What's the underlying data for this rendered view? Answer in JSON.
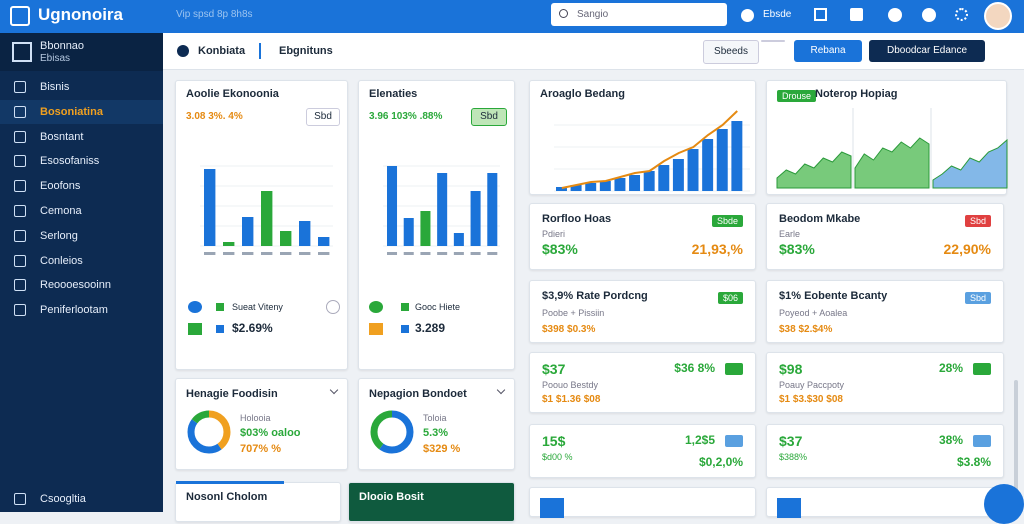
{
  "topbar": {
    "logo": "Ugnonoira",
    "tagline": "Vip spsd 8p 8h8s",
    "search": "Sangio",
    "user_link": "Ebsde"
  },
  "sidebar": {
    "brand": "Bbonnao",
    "brand_sub": "Ebisas",
    "items": [
      "Bisnis",
      "Bosoniatina",
      "Bosntant",
      "Esosofaniss",
      "Eoofons",
      "Cemona",
      "Serlong",
      "Conleios",
      "Reoooesooinn",
      "Peniferlootam"
    ],
    "footer": "Csoogltia"
  },
  "toolbar": {
    "title": "Konbiata",
    "tab": "Ebgnituns",
    "buttons": [
      "Sbeeds",
      "Rebana",
      "Dboodcar Edance"
    ]
  },
  "charts": {
    "a": {
      "title": "Aoolie Ekonoonia",
      "stats": "3.08 3%. 4%",
      "button": "Sbd",
      "bars": [
        77,
        4,
        29,
        55,
        15,
        25,
        9
      ],
      "bar_colors": [
        "#1a73d9",
        "#2aa83a",
        "#1a73d9",
        "#2aa83a",
        "#2aa83a",
        "#1a73d9",
        "#1a73d9"
      ],
      "legend": "Sueat Viteny",
      "value": "$2.69%"
    },
    "b": {
      "title": "Elenaties",
      "stats": "3.96 103% .88%",
      "button": "Sbd",
      "bars": [
        80,
        28,
        35,
        73,
        13,
        55,
        73
      ],
      "bar_colors": [
        "#1a73d9",
        "#1a73d9",
        "#2aa83a",
        "#1a73d9",
        "#1a73d9",
        "#1a73d9",
        "#1a73d9"
      ],
      "legend": "Gooc Hiete",
      "value": "3.289"
    },
    "c": {
      "title": "Aroaglo Bedang",
      "bars": [
        4,
        6,
        8,
        10,
        13,
        16,
        20,
        26,
        32,
        42,
        52,
        62,
        70
      ],
      "line": [
        3,
        6,
        9,
        10,
        14,
        18,
        20,
        30,
        38,
        44,
        56,
        66,
        80
      ]
    },
    "d": {
      "title": "Noterop Hopiag",
      "badge": "Drouse",
      "panels": [
        [
          10,
          18,
          14,
          24,
          20,
          30,
          26,
          36,
          32
        ],
        [
          20,
          34,
          28,
          40,
          36,
          46,
          40,
          50,
          44
        ],
        [
          8,
          14,
          22,
          18,
          30,
          26,
          36,
          40,
          48
        ]
      ]
    }
  },
  "stats": [
    {
      "title": "Rorfloo Hoas",
      "sub": "Pdieri",
      "left": "$83%",
      "right": "21,93,%",
      "badge": "Sbde"
    },
    {
      "title": "Beodom Mkabe",
      "sub": "Earle",
      "left": "$83%",
      "right": "22,90%",
      "badge": "Sbd"
    }
  ],
  "rows": [
    [
      {
        "title": "$3,9% Rate Pordcng",
        "sub": "Poobe + Pissiin",
        "foot": "$398 $0.3%",
        "badge": "$06"
      },
      {
        "title": "$1% Eobente Bcanty",
        "sub": "Poyeod + Aoalea",
        "foot": "$38 $2.$4%",
        "badge": "Sbd"
      }
    ],
    [
      {
        "title": "$37",
        "sub": "Poouo Bestdy",
        "right": "$36 8%",
        "foot": "$1 $1.36 $08"
      },
      {
        "title": "$98",
        "sub": "Poauy Paccpoty",
        "right": "28%",
        "foot": "$1 $3.$30 $08"
      }
    ],
    [
      {
        "title": "15$",
        "sub": "$d00 %",
        "right": "1,2$5",
        "foot": "$0,2,0%"
      },
      {
        "title": "$37",
        "sub": "$388%",
        "right": "38%",
        "foot": "$3.8%"
      }
    ]
  ],
  "donuts": [
    {
      "title": "Henagie Foodisin",
      "segments": [
        40,
        45,
        15
      ],
      "colors": [
        "#f0a020",
        "#1a73d9",
        "#2aa83a"
      ],
      "label1": "Holooia",
      "label2": "$03% oaloo",
      "label3": "707% %"
    },
    {
      "title": "Nepagion Bondoet",
      "segments": [
        60,
        40
      ],
      "colors": [
        "#1a73d9",
        "#2aa83a"
      ],
      "label1": "Toloia",
      "label2": "5.3%",
      "label3": "$329 %"
    }
  ],
  "bottom": [
    "Nosonl Cholom",
    "Dlooio Bosit"
  ]
}
